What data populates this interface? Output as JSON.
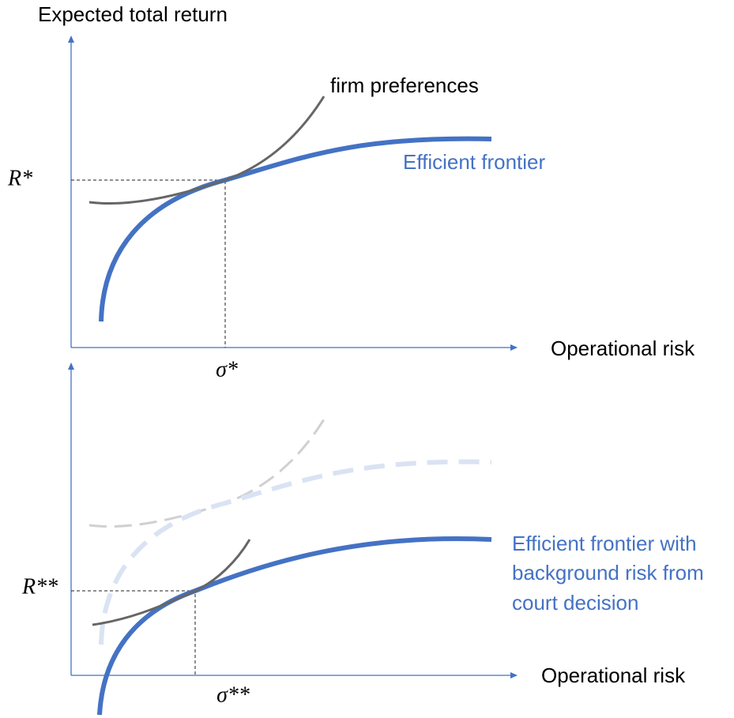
{
  "top_panel": {
    "y_axis_label": "Expected total return",
    "x_axis_label": "Operational risk",
    "r_label": "R*",
    "sigma_label": "σ*",
    "preferences_label": "firm preferences",
    "frontier_label": "Efficient frontier"
  },
  "bottom_panel": {
    "x_axis_label": "Operational risk",
    "r_label": "R**",
    "sigma_label": "σ**",
    "frontier_label_lines": [
      "Efficient frontier with",
      "background risk from",
      "court decision"
    ]
  }
}
